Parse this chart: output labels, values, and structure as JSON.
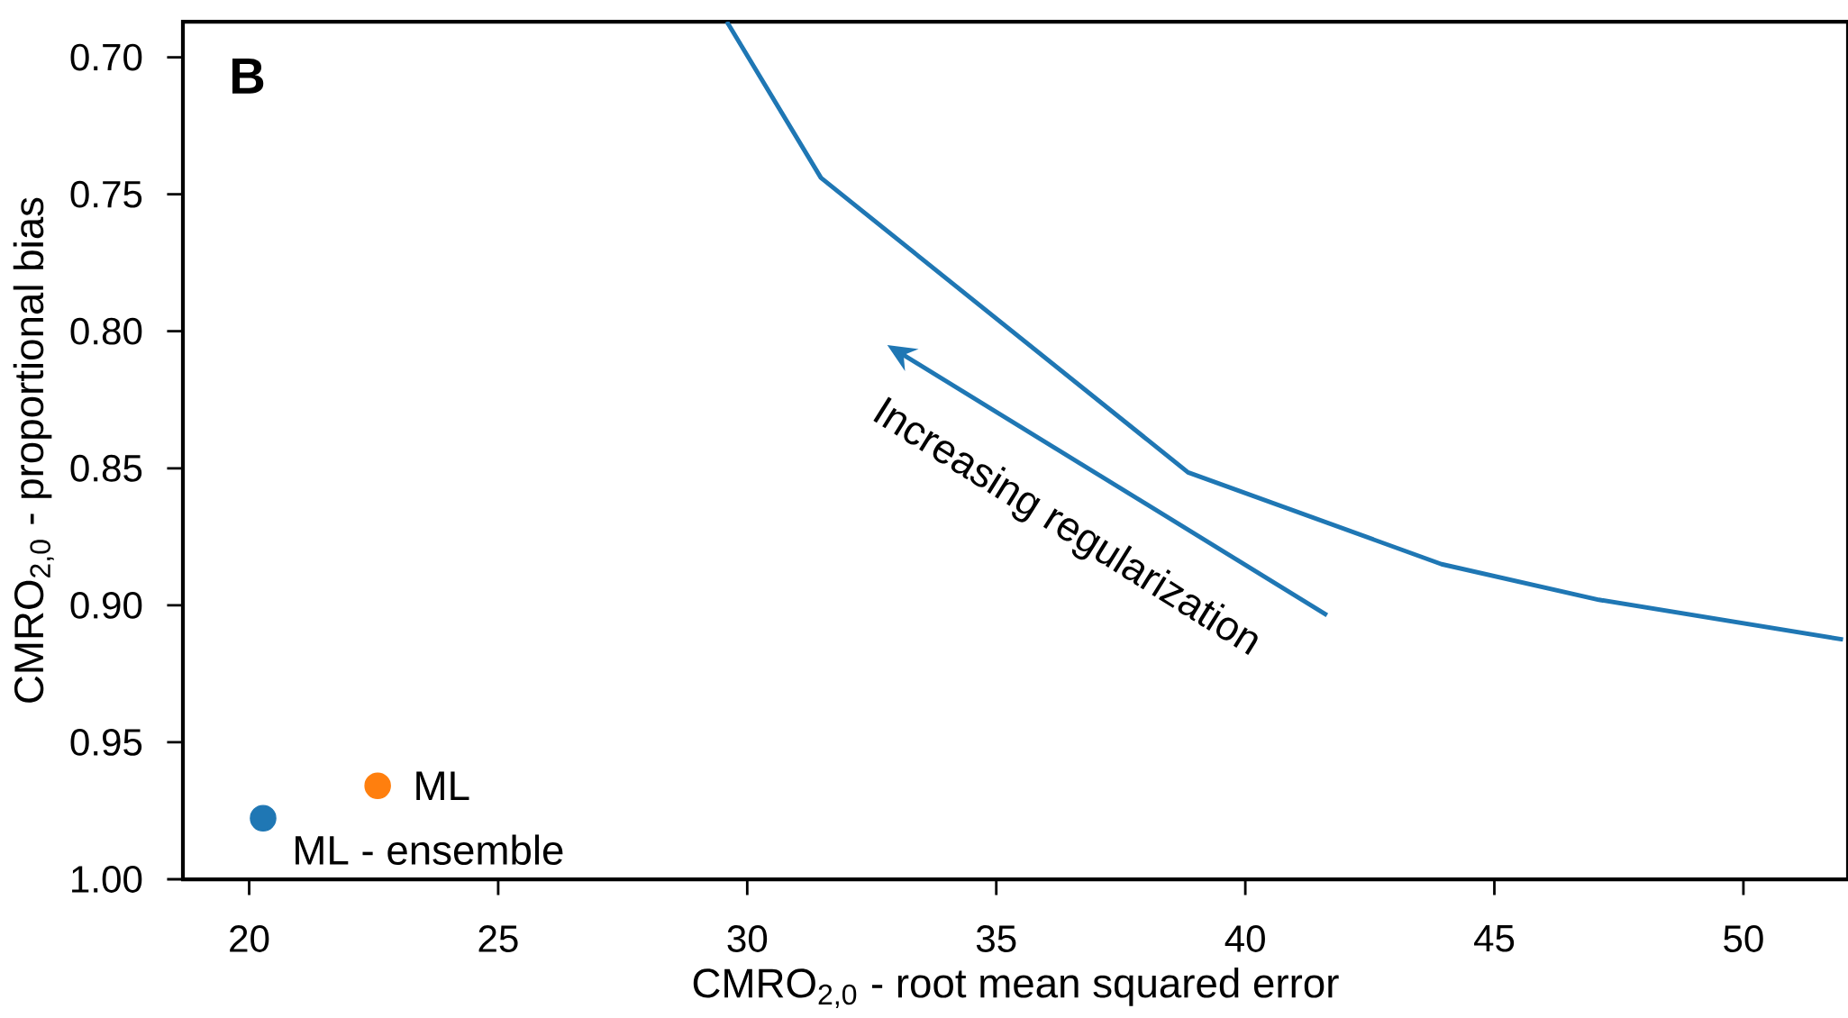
{
  "chart_data": {
    "type": "line",
    "xlabel": "CMRO$_{2,0}$ - root mean squared error",
    "ylabel": "CMRO$_{2,0}$ - proportional bias",
    "annotations": [
      "B",
      "Increasing regularization"
    ],
    "legend": "bottom left",
    "xlim": [
      18.67,
      52.1
    ],
    "ylim": [
      1.0,
      0.687
    ],
    "xticks": [
      20,
      25,
      30,
      35,
      40,
      45,
      50
    ],
    "yticks": [
      {
        "value": 0.7,
        "label": "0.70"
      },
      {
        "value": 0.75,
        "label": "0.75"
      },
      {
        "value": 0.8,
        "label": "0.80"
      },
      {
        "value": 0.85,
        "label": "0.85"
      },
      {
        "value": 0.9,
        "label": "0.90"
      },
      {
        "value": 0.95,
        "label": "0.95"
      },
      {
        "value": 1.0,
        "label": "1.00"
      }
    ],
    "series": [
      {
        "type": "line",
        "color": "#1f77b4",
        "x": [
          29.59,
          31.48,
          38.85,
          43.94,
          47.1,
          52.0
        ],
        "values": [
          0.687,
          0.744,
          0.8515,
          0.885,
          0.898,
          0.9125
        ]
      },
      {
        "type": "scatter",
        "name": "ML - ensemble",
        "color": "#1f77b4",
        "marker": "circle",
        "x": [
          20.28
        ],
        "values": [
          0.9777
        ]
      },
      {
        "type": "scatter",
        "name": "ML",
        "color": "#ff7f0e",
        "marker": "circle",
        "x": [
          22.58
        ],
        "values": [
          0.9659
        ]
      }
    ]
  }
}
